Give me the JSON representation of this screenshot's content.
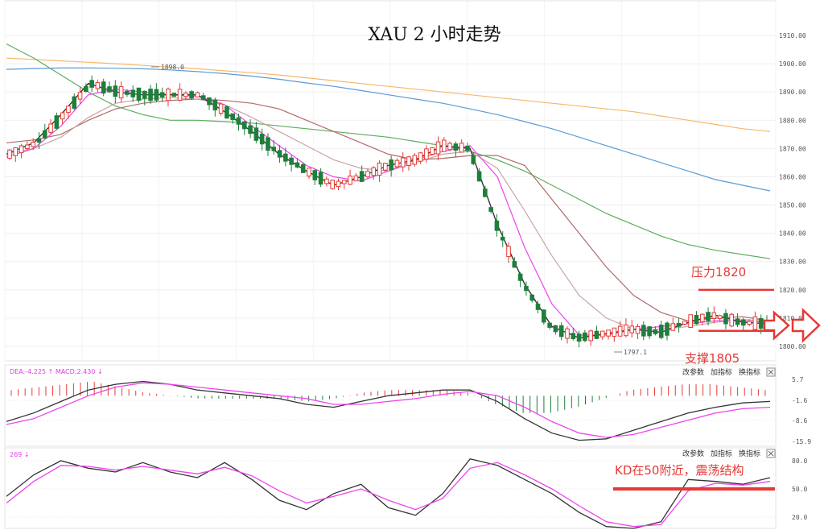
{
  "chart_data": [
    {
      "type": "candlestick",
      "title": "XAU 2 小时走势",
      "ylim": [
        1795,
        1915
      ],
      "yticks": [
        "1910.00",
        "1900.00",
        "1890.00",
        "1880.00",
        "1870.00",
        "1860.00",
        "1850.00",
        "1840.00",
        "1830.00",
        "1820.00",
        "1810.00",
        "1800.00"
      ],
      "high_label": "1898.0",
      "low_label": "1797.1",
      "annotations": {
        "resistance_label": "压力1820",
        "resistance_value": 1820,
        "support_label": "支撑1805",
        "support_value": 1805.5
      },
      "series": [
        {
          "color": "#f5b86a",
          "values": [
            1902,
            1901.5,
            1901,
            1900.5,
            1900,
            1899.4,
            1898.8,
            1898.2,
            1897.5,
            1896.8,
            1896,
            1895,
            1894,
            1893,
            1892,
            1891,
            1890,
            1889,
            1888,
            1887,
            1886,
            1885,
            1884,
            1883,
            1881.5,
            1880,
            1878.5,
            1877,
            1876
          ]
        },
        {
          "color": "#5b9bd5",
          "values": [
            1898,
            1898.3,
            1898.5,
            1898.5,
            1898.4,
            1898.2,
            1897.8,
            1897.2,
            1896.5,
            1895.6,
            1894.5,
            1893.2,
            1892,
            1890.5,
            1889,
            1887.5,
            1886,
            1884,
            1882,
            1879.5,
            1877,
            1874,
            1871,
            1868,
            1865,
            1862,
            1859,
            1857,
            1855
          ]
        },
        {
          "color": "#5cad5c",
          "values": [
            1907,
            1902,
            1896,
            1890,
            1885,
            1882,
            1880,
            1880,
            1879.5,
            1879,
            1878,
            1877,
            1876,
            1875,
            1874,
            1872.5,
            1871,
            1869,
            1866,
            1862,
            1857,
            1852,
            1847,
            1843,
            1839,
            1836,
            1834,
            1832.5,
            1831
          ]
        },
        {
          "color": "#b06a6a",
          "values": [
            1872,
            1873,
            1875,
            1880,
            1884,
            1886,
            1887,
            1887.5,
            1887,
            1886,
            1884,
            1880,
            1876,
            1872,
            1868,
            1866,
            1866.5,
            1867.5,
            1867.5,
            1864,
            1852,
            1840,
            1828,
            1818,
            1812,
            1809,
            1810,
            1810.5,
            1809
          ]
        },
        {
          "color": "#c9a5a5",
          "values": [
            1868,
            1870,
            1874,
            1881,
            1886,
            1887.5,
            1888,
            1887.5,
            1885.5,
            1881,
            1876,
            1871,
            1866,
            1863,
            1862,
            1865,
            1868,
            1869,
            1863,
            1848,
            1832,
            1818,
            1810,
            1806,
            1806,
            1807,
            1808.5,
            1809.5,
            1809
          ]
        },
        {
          "color": "#ee44ee",
          "values": [
            1867,
            1870,
            1878,
            1889,
            1891,
            1890,
            1889,
            1888.5,
            1885.5,
            1878,
            1871,
            1864,
            1860,
            1858.5,
            1862,
            1866,
            1869,
            1871,
            1860,
            1835,
            1815,
            1804,
            1804,
            1806,
            1807,
            1808,
            1809,
            1809,
            1808.5
          ]
        },
        {
          "color": "#333333",
          "values": [
            1868,
            1872,
            1882,
            1893,
            1890,
            1889,
            1889,
            1889,
            1883,
            1876,
            1868,
            1862,
            1857,
            1860,
            1864,
            1866,
            1871,
            1870,
            1843,
            1822,
            1807,
            1803,
            1804.5,
            1806,
            1805,
            1808.5,
            1811,
            1808.5,
            1808
          ]
        }
      ]
    },
    {
      "type": "line",
      "indicator": "MACD",
      "label": "DEA:-4.225 ↑ MACD:2.430 ↓",
      "controls": [
        "改参数",
        "加指标",
        "换指标"
      ],
      "yticks": [
        "5.7",
        "-1.6",
        "-8.6",
        "-15.9"
      ],
      "ylim": [
        -15.9,
        5.7
      ],
      "series": [
        {
          "color": "#333333",
          "values": [
            -9,
            -6,
            -2,
            2,
            4,
            5,
            4,
            2,
            1,
            0,
            -1,
            -3,
            -4,
            -2,
            0,
            1,
            2,
            2,
            -2,
            -8,
            -13,
            -15.5,
            -15,
            -12,
            -9,
            -6,
            -4,
            -2.5,
            -2
          ]
        },
        {
          "color": "#ee44ee",
          "values": [
            -10,
            -8,
            -4,
            0,
            3,
            4.5,
            4,
            3,
            2,
            1,
            0,
            -1,
            -3,
            -3,
            -2,
            -1,
            0.5,
            1.5,
            0,
            -4,
            -9,
            -13,
            -14.5,
            -13.5,
            -11,
            -8.5,
            -6,
            -4.5,
            -4
          ]
        }
      ],
      "histogram": [
        2,
        3,
        4,
        5,
        3,
        1,
        0,
        -1,
        -1,
        -1,
        -1,
        -2,
        -1,
        1,
        2,
        2,
        2,
        1,
        -3,
        -6,
        -6,
        -4,
        -1,
        2,
        3,
        4,
        4,
        3,
        2
      ]
    },
    {
      "type": "line",
      "indicator": "KD",
      "label": "269 ↓",
      "controls": [
        "改参数",
        "加指标",
        "换指标"
      ],
      "yticks": [
        "80.0",
        "50.0",
        "20.0"
      ],
      "ylim": [
        5,
        95
      ],
      "series": [
        {
          "color": "#333333",
          "values": [
            42,
            65,
            80,
            72,
            68,
            78,
            68,
            62,
            78,
            60,
            38,
            28,
            45,
            55,
            30,
            22,
            45,
            82,
            75,
            60,
            45,
            25,
            10,
            8,
            15,
            60,
            58,
            55,
            62
          ]
        },
        {
          "color": "#ee44ee",
          "values": [
            35,
            58,
            75,
            74,
            70,
            74,
            70,
            66,
            73,
            64,
            48,
            35,
            42,
            50,
            38,
            28,
            40,
            72,
            78,
            65,
            50,
            32,
            15,
            10,
            12,
            48,
            56,
            54,
            58
          ]
        }
      ],
      "annotation": "KD在50附近，震荡结构",
      "annotation_value": 50
    }
  ]
}
